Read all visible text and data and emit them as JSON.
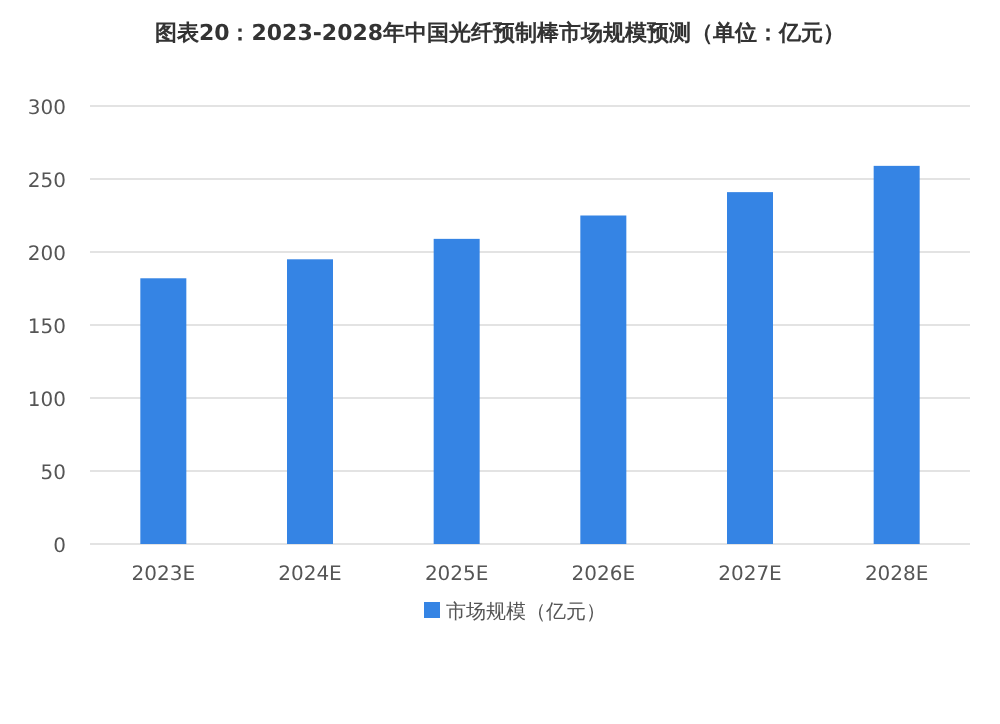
{
  "chart_data": {
    "type": "bar",
    "title": "图表20：2023-2028年中国光纤预制棒市场规模预测（单位：亿元）",
    "categories": [
      "2023E",
      "2024E",
      "2025E",
      "2026E",
      "2027E",
      "2028E"
    ],
    "series": [
      {
        "name": "市场规模（亿元）",
        "color": "#3584e4",
        "values": [
          182,
          195,
          209,
          225,
          241,
          259
        ]
      }
    ],
    "ylim": [
      0,
      300
    ],
    "yticks": [
      0,
      50,
      100,
      150,
      200,
      250,
      300
    ],
    "grid": "y",
    "legend": "bottom"
  }
}
